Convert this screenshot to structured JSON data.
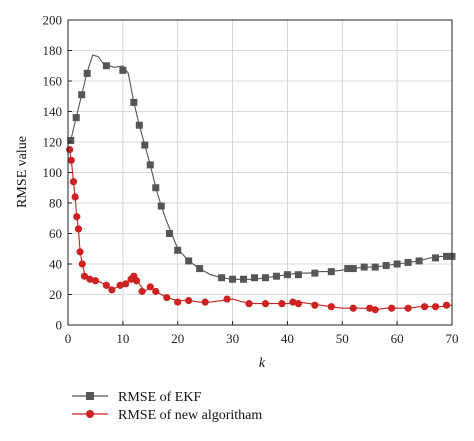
{
  "chart_data": {
    "type": "line",
    "xlabel": "k",
    "ylabel": "RMSE value",
    "xlim": [
      0,
      70
    ],
    "ylim": [
      0,
      200
    ],
    "xticks": [
      0,
      10,
      20,
      30,
      40,
      50,
      60,
      70
    ],
    "yticks": [
      0,
      20,
      40,
      60,
      80,
      100,
      120,
      140,
      160,
      180,
      200
    ],
    "grid": true,
    "legend_position": "bottom",
    "series": [
      {
        "name": "RMSE of EKF",
        "color": "#555555",
        "marker": "square",
        "curve": [
          [
            0.5,
            121
          ],
          [
            1.5,
            136
          ],
          [
            2.5,
            151
          ],
          [
            3.5,
            166
          ],
          [
            4.5,
            177
          ],
          [
            5.5,
            176
          ],
          [
            6.5,
            171
          ],
          [
            7.5,
            170
          ],
          [
            8.5,
            169
          ],
          [
            10,
            170
          ],
          [
            11,
            165
          ],
          [
            12,
            146
          ],
          [
            13,
            131
          ],
          [
            14,
            118
          ],
          [
            15,
            105
          ],
          [
            16,
            90
          ],
          [
            17,
            78
          ],
          [
            18,
            68
          ],
          [
            19,
            59
          ],
          [
            20,
            50
          ],
          [
            22,
            42
          ],
          [
            24,
            37
          ],
          [
            26,
            33
          ],
          [
            28,
            31
          ],
          [
            30,
            30
          ],
          [
            32,
            30
          ],
          [
            34,
            30
          ],
          [
            36,
            31
          ],
          [
            38,
            32
          ],
          [
            40,
            33
          ],
          [
            42,
            34
          ],
          [
            44,
            34
          ],
          [
            46,
            35
          ],
          [
            48,
            35
          ],
          [
            50,
            36
          ],
          [
            52,
            37
          ],
          [
            54,
            38
          ],
          [
            56,
            38
          ],
          [
            58,
            39
          ],
          [
            60,
            40
          ],
          [
            62,
            41
          ],
          [
            64,
            42
          ],
          [
            66,
            44
          ],
          [
            68,
            45
          ],
          [
            70,
            45
          ]
        ],
        "points": [
          [
            0.5,
            121
          ],
          [
            1.5,
            136
          ],
          [
            2.5,
            151
          ],
          [
            3.5,
            165
          ],
          [
            7,
            170
          ],
          [
            10,
            167
          ],
          [
            12,
            146
          ],
          [
            13,
            131
          ],
          [
            14,
            118
          ],
          [
            15,
            105
          ],
          [
            16,
            90
          ],
          [
            17,
            78
          ],
          [
            18.5,
            60
          ],
          [
            20,
            49
          ],
          [
            22,
            42
          ],
          [
            24,
            37
          ],
          [
            28,
            31
          ],
          [
            30,
            30
          ],
          [
            32,
            30
          ],
          [
            34,
            31
          ],
          [
            36,
            31
          ],
          [
            38,
            32
          ],
          [
            40,
            33
          ],
          [
            42,
            33
          ],
          [
            45,
            34
          ],
          [
            48,
            35
          ],
          [
            51,
            37
          ],
          [
            52,
            37
          ],
          [
            54,
            38
          ],
          [
            56,
            38
          ],
          [
            58,
            39
          ],
          [
            60,
            40
          ],
          [
            62,
            41
          ],
          [
            64,
            42
          ],
          [
            67,
            44
          ],
          [
            69,
            45
          ],
          [
            70,
            45
          ]
        ]
      },
      {
        "name": "RMSE of new algoritham",
        "color": "#cc2222",
        "marker": "circle",
        "curve": [
          [
            0.3,
            115
          ],
          [
            0.6,
            108
          ],
          [
            1,
            94
          ],
          [
            1.3,
            84
          ],
          [
            1.6,
            71
          ],
          [
            1.9,
            63
          ],
          [
            2.2,
            48
          ],
          [
            2.6,
            40
          ],
          [
            3,
            34
          ],
          [
            3.5,
            31
          ],
          [
            4,
            30
          ],
          [
            5,
            29
          ],
          [
            6,
            28
          ],
          [
            7,
            26
          ],
          [
            8,
            23
          ],
          [
            9,
            25
          ],
          [
            10,
            27
          ],
          [
            11,
            29
          ],
          [
            12,
            32
          ],
          [
            13,
            27
          ],
          [
            14,
            22
          ],
          [
            15,
            25
          ],
          [
            16,
            22
          ],
          [
            17,
            20
          ],
          [
            18,
            18
          ],
          [
            20,
            16
          ],
          [
            22,
            16
          ],
          [
            24,
            15
          ],
          [
            26,
            15
          ],
          [
            28,
            16
          ],
          [
            30,
            17
          ],
          [
            32,
            15
          ],
          [
            34,
            14
          ],
          [
            36,
            14
          ],
          [
            38,
            14
          ],
          [
            40,
            14
          ],
          [
            42,
            15
          ],
          [
            44,
            14
          ],
          [
            46,
            13
          ],
          [
            48,
            12
          ],
          [
            50,
            11
          ],
          [
            52,
            11
          ],
          [
            54,
            11
          ],
          [
            56,
            10
          ],
          [
            58,
            11
          ],
          [
            60,
            11
          ],
          [
            62,
            11
          ],
          [
            64,
            12
          ],
          [
            66,
            12
          ],
          [
            68,
            12
          ],
          [
            70,
            13
          ]
        ],
        "points": [
          [
            0.3,
            115
          ],
          [
            0.6,
            108
          ],
          [
            1,
            94
          ],
          [
            1.3,
            84
          ],
          [
            1.6,
            71
          ],
          [
            1.9,
            63
          ],
          [
            2.2,
            48
          ],
          [
            2.6,
            40
          ],
          [
            3,
            32
          ],
          [
            4,
            30
          ],
          [
            5,
            29
          ],
          [
            7,
            26
          ],
          [
            8,
            23
          ],
          [
            9.5,
            26
          ],
          [
            10.5,
            27
          ],
          [
            11.5,
            30
          ],
          [
            12,
            32
          ],
          [
            12.5,
            29
          ],
          [
            13.5,
            22
          ],
          [
            15,
            25
          ],
          [
            16,
            22
          ],
          [
            18,
            18
          ],
          [
            20,
            15
          ],
          [
            22,
            16
          ],
          [
            25,
            15
          ],
          [
            29,
            17
          ],
          [
            33,
            14
          ],
          [
            36,
            14
          ],
          [
            39,
            14
          ],
          [
            41,
            15
          ],
          [
            42,
            14
          ],
          [
            45,
            13
          ],
          [
            48,
            12
          ],
          [
            52,
            11
          ],
          [
            55,
            11
          ],
          [
            56,
            10
          ],
          [
            59,
            11
          ],
          [
            62,
            11
          ],
          [
            65,
            12
          ],
          [
            67,
            12
          ],
          [
            69,
            13
          ]
        ]
      }
    ]
  }
}
